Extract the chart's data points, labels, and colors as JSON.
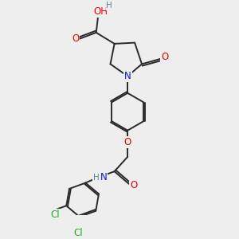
{
  "bg_color": "#eeeeee",
  "bond_color": "#2a2a2a",
  "bond_width": 1.4,
  "atom_colors": {
    "C": "#2a2a2a",
    "H": "#5a8a8a",
    "O": "#ee0000",
    "N": "#1010cc",
    "Cl": "#22aa22"
  },
  "font_size": 8.5,
  "font_size_h": 7.5
}
